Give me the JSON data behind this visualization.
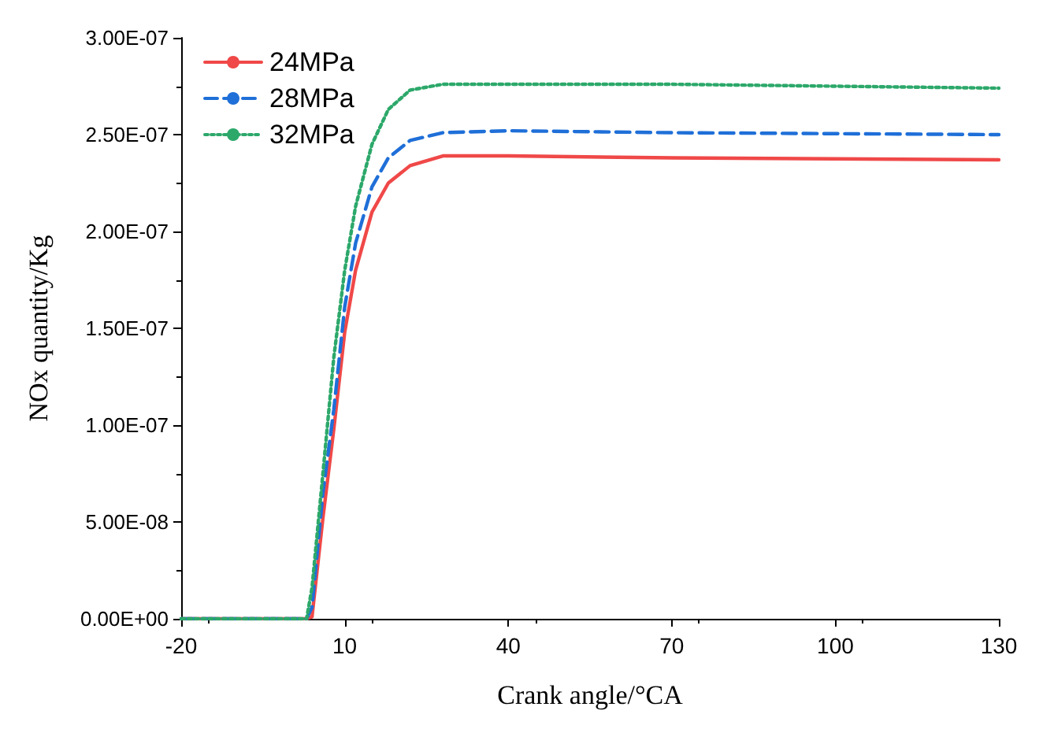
{
  "chart_data": {
    "type": "line",
    "xlabel": "Crank angle/°CA",
    "ylabel": "NOx quantity/Kg",
    "x": [
      -20,
      0,
      3,
      4,
      6,
      8,
      10,
      12,
      15,
      18,
      22,
      28,
      40,
      70,
      100,
      130
    ],
    "series": [
      {
        "name": "24MPa",
        "color": "#f04848",
        "line_style": "solid",
        "values": [
          0,
          0,
          0,
          1e-09,
          5.2e-08,
          9.8e-08,
          1.48e-07,
          1.8e-07,
          2.1e-07,
          2.25e-07,
          2.34e-07,
          2.39e-07,
          2.39e-07,
          2.38e-07,
          2.375e-07,
          2.37e-07
        ]
      },
      {
        "name": "28MPa",
        "color": "#1f6fd8",
        "line_style": "dashed",
        "values": [
          0,
          0,
          0,
          6e-09,
          6.5e-08,
          1.08e-07,
          1.61e-07,
          1.94e-07,
          2.23e-07,
          2.38e-07,
          2.47e-07,
          2.51e-07,
          2.52e-07,
          2.51e-07,
          2.505e-07,
          2.5e-07
        ]
      },
      {
        "name": "32MPa",
        "color": "#2ca86a",
        "line_style": "dotted",
        "values": [
          0,
          0,
          0,
          1.6e-08,
          7.5e-08,
          1.35e-07,
          1.8e-07,
          2.13e-07,
          2.45e-07,
          2.63e-07,
          2.73e-07,
          2.76e-07,
          2.76e-07,
          2.76e-07,
          2.75e-07,
          2.74e-07
        ]
      }
    ],
    "xlim": [
      -20,
      130
    ],
    "xticks": [
      -20,
      10,
      40,
      70,
      100,
      130
    ],
    "ylim": [
      0,
      3e-07
    ],
    "yticks": [
      {
        "value": 0,
        "label": "0.00E+00"
      },
      {
        "value": 5e-08,
        "label": "5.00E-08"
      },
      {
        "value": 1e-07,
        "label": "1.00E-07"
      },
      {
        "value": 1.5e-07,
        "label": "1.50E-07"
      },
      {
        "value": 2e-07,
        "label": "2.00E-07"
      },
      {
        "value": 2.5e-07,
        "label": "2.50E-07"
      },
      {
        "value": 3e-07,
        "label": "3.00E-07"
      }
    ],
    "legend": "top left",
    "grid": false,
    "marker": "none"
  }
}
